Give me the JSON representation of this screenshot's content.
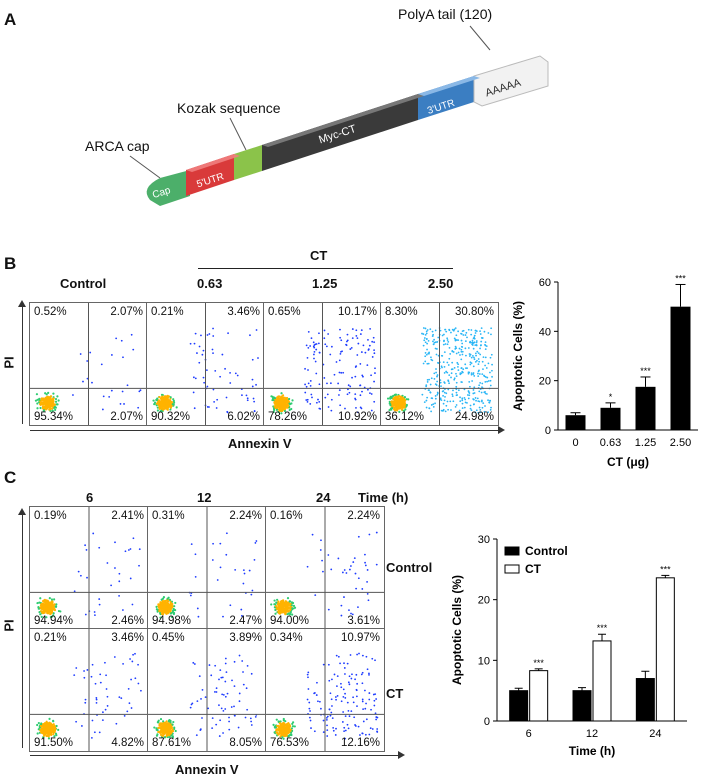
{
  "panel_a": {
    "letter": "A",
    "labels": {
      "polya": "PolyA tail (120)",
      "kozak": "Kozak sequence",
      "arca": "ARCA cap"
    },
    "segments": {
      "cap": "Cap",
      "utr5": "5'UTR",
      "myc": "Myc-CT",
      "utr3": "3'UTR",
      "polya_seq": "AAAAA"
    },
    "colors": {
      "cap": "#4caf6a",
      "utr5": "#d93a3a",
      "kozak": "#8bc34a",
      "myc": "#3a3a3a",
      "utr3": "#3b7ec2",
      "polya": "#f2f2f2"
    }
  },
  "panel_b": {
    "letter": "B",
    "ct_label": "CT",
    "control_label": "Control",
    "doses": [
      "0.63",
      "1.25",
      "2.50"
    ],
    "y_axis_label": "PI",
    "x_axis_label": "Annexin V",
    "plots": [
      {
        "ul": "0.52%",
        "ur": "2.07%",
        "ll": "95.34%",
        "lr": "2.07%"
      },
      {
        "ul": "0.21%",
        "ur": "3.46%",
        "ll": "90.32%",
        "lr": "6.02%"
      },
      {
        "ul": "0.65%",
        "ur": "10.17%",
        "ll": "78.26%",
        "lr": "10.92%"
      },
      {
        "ul": "8.30%",
        "ur": "30.80%",
        "ll": "36.12%",
        "lr": "24.98%"
      }
    ]
  },
  "panel_c": {
    "letter": "C",
    "times": [
      "6",
      "12",
      "24"
    ],
    "time_label": "Time (h)",
    "row_labels": [
      "Control",
      "CT"
    ],
    "y_axis_label": "PI",
    "x_axis_label": "Annexin V",
    "plots": [
      [
        {
          "ul": "0.19%",
          "ur": "2.41%",
          "ll": "94.94%",
          "lr": "2.46%"
        },
        {
          "ul": "0.31%",
          "ur": "2.24%",
          "ll": "94.98%",
          "lr": "2.47%"
        },
        {
          "ul": "0.16%",
          "ur": "2.24%",
          "ll": "94.00%",
          "lr": "3.61%"
        }
      ],
      [
        {
          "ul": "0.21%",
          "ur": "3.46%",
          "ll": "91.50%",
          "lr": "4.82%"
        },
        {
          "ul": "0.45%",
          "ur": "3.89%",
          "ll": "87.61%",
          "lr": "8.05%"
        },
        {
          "ul": "0.34%",
          "ur": "10.97%",
          "ll": "76.53%",
          "lr": "12.16%"
        }
      ]
    ]
  },
  "chart_data": [
    {
      "type": "bar",
      "categories": [
        "0",
        "0.63",
        "1.25",
        "2.50"
      ],
      "values": [
        6,
        9,
        17.5,
        50
      ],
      "errors": [
        1,
        2,
        4,
        9
      ],
      "significance": [
        "",
        "*",
        "***",
        "***"
      ],
      "title": "",
      "xlabel": "CT (μg)",
      "ylabel": "Apoptotic Cells (%)",
      "ylim": [
        0,
        60
      ],
      "yticks": [
        "0",
        "20",
        "40",
        "60"
      ],
      "bar_color": "#000000"
    },
    {
      "type": "bar",
      "categories": [
        "6",
        "12",
        "24"
      ],
      "series": [
        {
          "name": "Control",
          "values": [
            5,
            5,
            7
          ],
          "errors": [
            0.4,
            0.5,
            1.2
          ],
          "fill": "#000000"
        },
        {
          "name": "CT",
          "values": [
            8.3,
            13.2,
            23.6
          ],
          "errors": [
            0.3,
            1.1,
            0.4
          ],
          "fill": "#ffffff"
        }
      ],
      "significance": [
        "***",
        "***",
        "***"
      ],
      "title": "",
      "xlabel": "Time (h)",
      "ylabel": "Apoptotic Cells (%)",
      "ylim": [
        0,
        30
      ],
      "yticks": [
        "0",
        "10",
        "20",
        "30"
      ],
      "legend": "top-left"
    }
  ]
}
